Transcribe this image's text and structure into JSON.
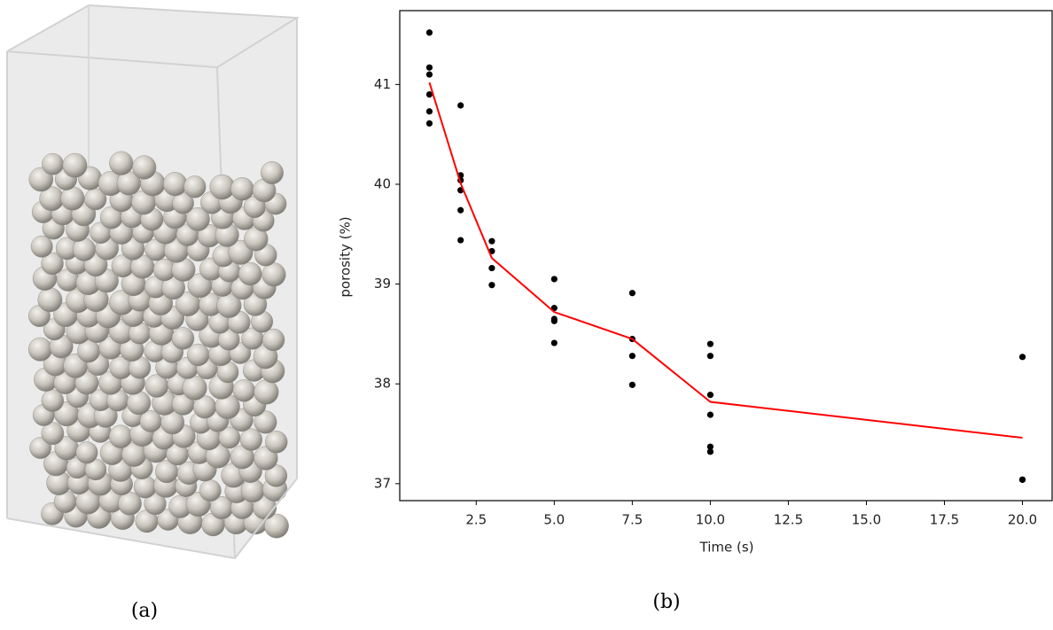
{
  "captions": [
    "(a)",
    "(b)"
  ],
  "chart_data": {
    "type": "scatter",
    "x_label": "Time (s)",
    "y_label": "porosity (%)",
    "xlim": [
      0.05,
      20.95
    ],
    "ylim": [
      36.83,
      41.74
    ],
    "xticks": [
      2.5,
      {
        "value": 5,
        "label": "5.0"
      },
      7.5,
      {
        "value": 10,
        "label": "10.0"
      },
      12.5,
      {
        "value": 15,
        "label": "15.0"
      },
      17.5,
      {
        "value": 20,
        "label": "20.0"
      }
    ],
    "yticks": [
      37,
      38,
      39,
      40,
      41
    ],
    "series": [
      {
        "type": "scatter",
        "color": "#000000",
        "x": [
          1,
          1,
          1,
          1,
          1,
          1,
          2,
          2,
          2,
          2,
          2,
          2,
          3,
          3,
          3,
          3,
          5,
          5,
          5,
          5,
          5,
          7.5,
          7.5,
          7.5,
          7.5,
          10,
          10,
          10,
          10,
          10,
          10,
          20,
          20,
          20
        ],
        "values": [
          41.52,
          41.17,
          41.1,
          40.9,
          40.73,
          40.61,
          40.79,
          40.09,
          40.04,
          39.94,
          39.74,
          39.44,
          39.43,
          39.33,
          39.16,
          38.99,
          39.05,
          38.76,
          38.65,
          38.63,
          38.41,
          38.91,
          38.45,
          38.28,
          37.99,
          38.4,
          38.28,
          37.89,
          37.69,
          37.37,
          37.32,
          38.27,
          37.04,
          37.04
        ]
      },
      {
        "type": "line",
        "color": "#ff0000",
        "x": [
          1,
          2,
          3,
          5,
          7.5,
          10,
          20
        ],
        "values": [
          41.02,
          40.01,
          39.26,
          38.72,
          38.45,
          37.82,
          37.46
        ]
      }
    ]
  }
}
